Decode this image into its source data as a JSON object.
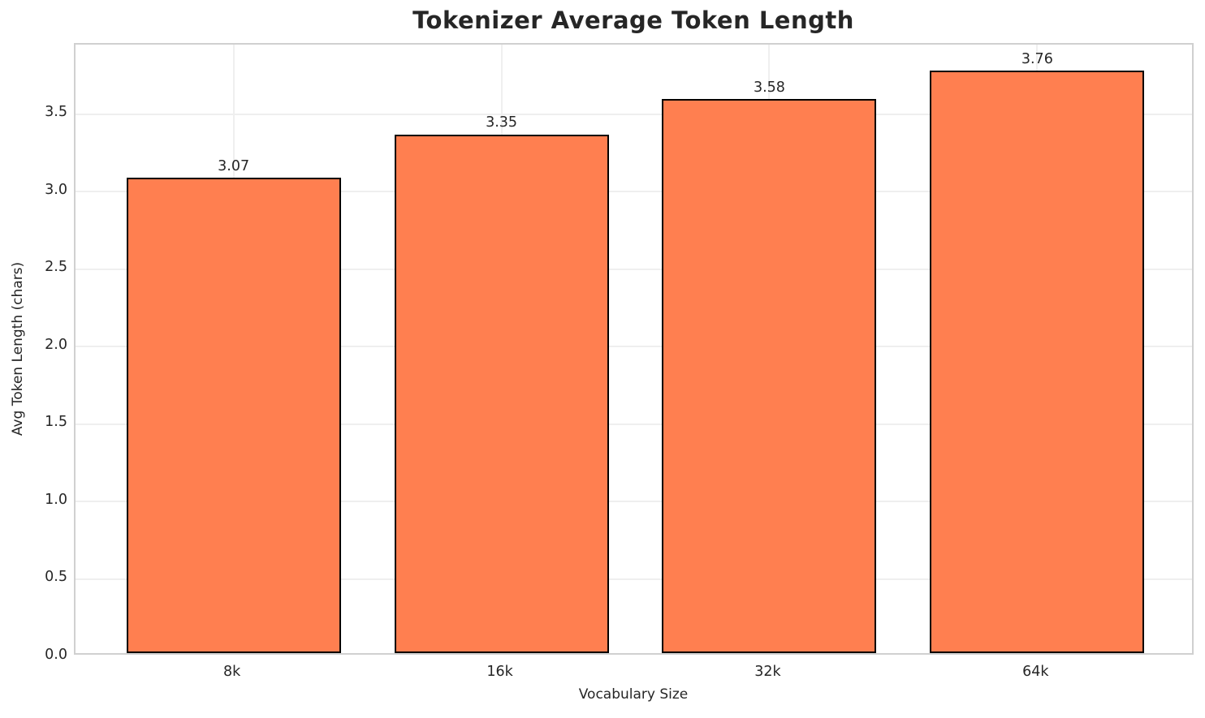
{
  "chart_data": {
    "type": "bar",
    "title": "Tokenizer Average Token Length",
    "xlabel": "Vocabulary Size",
    "ylabel": "Avg Token Length (chars)",
    "categories": [
      "8k",
      "16k",
      "32k",
      "64k"
    ],
    "values": [
      3.07,
      3.35,
      3.58,
      3.76
    ],
    "value_labels": [
      "3.07",
      "3.35",
      "3.58",
      "3.76"
    ],
    "yticks": [
      0.0,
      0.5,
      1.0,
      1.5,
      2.0,
      2.5,
      3.0,
      3.5
    ],
    "ytick_labels": [
      "0.0",
      "0.5",
      "1.0",
      "1.5",
      "2.0",
      "2.5",
      "3.0",
      "3.5"
    ],
    "ylim": [
      0,
      3.95
    ],
    "xlim": [
      -0.59,
      3.59
    ],
    "bar_width_units": 0.8,
    "grid": true,
    "legend": "none",
    "colors": {
      "bar_fill": "#FF7F50",
      "bar_edge": "#000000",
      "grid": "#efefef",
      "spine": "#d0d0d0",
      "text": "#262626",
      "background": "#ffffff"
    }
  }
}
